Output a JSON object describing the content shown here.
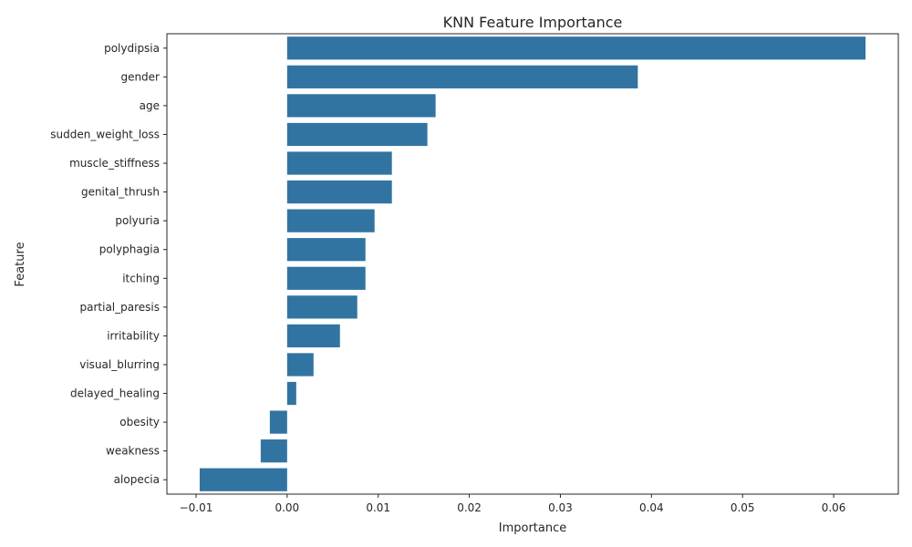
{
  "chart_data": {
    "type": "bar",
    "orientation": "horizontal",
    "title": "KNN Feature Importance",
    "xlabel": "Importance",
    "ylabel": "Feature",
    "categories": [
      "polydipsia",
      "gender",
      "age",
      "sudden_weight_loss",
      "muscle_stiffness",
      "genital_thrush",
      "polyuria",
      "polyphagia",
      "itching",
      "partial_paresis",
      "irritability",
      "visual_blurring",
      "delayed_healing",
      "obesity",
      "weakness",
      "alopecia"
    ],
    "values": [
      0.0635,
      0.0385,
      0.0163,
      0.0154,
      0.0115,
      0.0115,
      0.0096,
      0.0086,
      0.0086,
      0.0077,
      0.0058,
      0.0029,
      0.001,
      -0.0019,
      -0.0029,
      -0.0096
    ],
    "xlim": [
      -0.0132,
      0.0671
    ],
    "xticks": [
      -0.01,
      0.0,
      0.01,
      0.02,
      0.03,
      0.04,
      0.05,
      0.06
    ],
    "xtick_labels": [
      "−0.01",
      "0.00",
      "0.01",
      "0.02",
      "0.03",
      "0.04",
      "0.05",
      "0.06"
    ],
    "bar_color": "#3274a1",
    "grid": false,
    "legend": "none"
  }
}
